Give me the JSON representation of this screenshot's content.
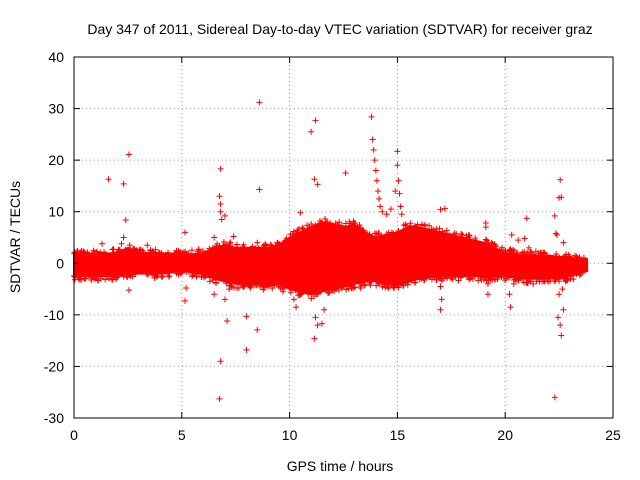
{
  "chart_data": {
    "type": "scatter",
    "title": "Day 347 of 2011, Sidereal Day-to-day VTEC variation (SDTVAR) for receiver graz",
    "xlabel": "GPS time / hours",
    "ylabel": "SDTVAR / TECUs",
    "xlim": [
      0,
      25
    ],
    "ylim": [
      -30,
      40
    ],
    "x_ticks": [
      "0",
      "5",
      "10",
      "15",
      "20",
      "25"
    ],
    "y_ticks": [
      "-30",
      "-20",
      "-10",
      "0",
      "10",
      "20",
      "30",
      "40"
    ],
    "grid": true,
    "marker": "+",
    "series_color": "#ff0000",
    "band": {
      "x": [
        0,
        1,
        2,
        2.5,
        3,
        4,
        5,
        6,
        6.5,
        7,
        7.5,
        8,
        8.5,
        9,
        9.5,
        10,
        10.5,
        11,
        11.5,
        12,
        12.5,
        13,
        13.5,
        14,
        14.5,
        15,
        15.5,
        16,
        17,
        18,
        19,
        20,
        21,
        22,
        23,
        23.8
      ],
      "upper": [
        2,
        1.8,
        2,
        3,
        2,
        2,
        1.5,
        2,
        3,
        3.5,
        3,
        3,
        3,
        3,
        3.5,
        5,
        6,
        7,
        8,
        7.5,
        7,
        7.5,
        6,
        5,
        5.5,
        6,
        7,
        7,
        6,
        5,
        4,
        2,
        1.5,
        1.5,
        1,
        0.8
      ],
      "lower": [
        -2.5,
        -2.5,
        -2.5,
        -2,
        -2,
        -2,
        -1.5,
        -2,
        -3,
        -3.5,
        -4,
        -4,
        -4,
        -4.5,
        -4,
        -5,
        -5.5,
        -6,
        -5.5,
        -5,
        -4.5,
        -4,
        -3.5,
        -3.5,
        -4,
        -4,
        -3.5,
        -3,
        -2.5,
        -2.5,
        -2.5,
        -2.5,
        -3,
        -3,
        -2.5,
        -1.5
      ]
    },
    "points": [
      [
        1.6,
        16.3
      ],
      [
        2.3,
        15.4
      ],
      [
        2.55,
        21.1
      ],
      [
        2.55,
        -5.2
      ],
      [
        2.4,
        8.4
      ],
      [
        2.3,
        5.0
      ],
      [
        2.2,
        3.8
      ],
      [
        1.3,
        3.8
      ],
      [
        3.4,
        3.5
      ],
      [
        5.15,
        6.0
      ],
      [
        5.2,
        -4.8
      ],
      [
        5.15,
        -7.3
      ],
      [
        6.3,
        -3.5
      ],
      [
        6.5,
        5.0
      ],
      [
        6.5,
        -6.0
      ],
      [
        6.8,
        18.3
      ],
      [
        6.75,
        13.0
      ],
      [
        6.8,
        11.5
      ],
      [
        6.8,
        10.0
      ],
      [
        6.85,
        8.5
      ],
      [
        7.0,
        9.2
      ],
      [
        6.8,
        -19.0
      ],
      [
        6.75,
        -26.3
      ],
      [
        7.0,
        -7.0
      ],
      [
        7.1,
        -11.2
      ],
      [
        7.2,
        -5.0
      ],
      [
        7.4,
        5.2
      ],
      [
        8.0,
        -10.3
      ],
      [
        8.0,
        -16.8
      ],
      [
        8.6,
        31.2
      ],
      [
        8.6,
        14.3
      ],
      [
        8.5,
        4.0
      ],
      [
        8.5,
        -12.9
      ],
      [
        9.5,
        -4.5
      ],
      [
        9.7,
        -5.5
      ],
      [
        10.2,
        -7.0
      ],
      [
        10.3,
        -8.5
      ],
      [
        10.5,
        9.8
      ],
      [
        11.0,
        25.5
      ],
      [
        11.2,
        27.7
      ],
      [
        11.15,
        16.3
      ],
      [
        11.3,
        15.3
      ],
      [
        11.2,
        -10.5
      ],
      [
        11.3,
        -12.0
      ],
      [
        11.15,
        -14.6
      ],
      [
        11.5,
        -11.7
      ],
      [
        11.6,
        -9.0
      ],
      [
        11.3,
        -6.0
      ],
      [
        12.6,
        17.5
      ],
      [
        13.8,
        28.4
      ],
      [
        13.85,
        24.0
      ],
      [
        13.9,
        22.0
      ],
      [
        13.95,
        20.0
      ],
      [
        14.0,
        18.0
      ],
      [
        14.05,
        16.0
      ],
      [
        14.1,
        14.0
      ],
      [
        14.15,
        12.5
      ],
      [
        14.2,
        11.0
      ],
      [
        14.3,
        10.0
      ],
      [
        14.5,
        9.5
      ],
      [
        14.7,
        10.5
      ],
      [
        14.9,
        14.0
      ],
      [
        15.0,
        21.7
      ],
      [
        15.0,
        19.0
      ],
      [
        15.05,
        16.0
      ],
      [
        15.1,
        13.5
      ],
      [
        15.15,
        11.0
      ],
      [
        15.2,
        9.5
      ],
      [
        13.4,
        -3.5
      ],
      [
        13.3,
        -4.8
      ],
      [
        17.0,
        10.4
      ],
      [
        17.2,
        10.6
      ],
      [
        17.0,
        -4.5
      ],
      [
        17.05,
        -7.0
      ],
      [
        17.0,
        -9.0
      ],
      [
        17.1,
        4.5
      ],
      [
        19.1,
        7.8
      ],
      [
        19.1,
        7.0
      ],
      [
        19.2,
        -4.0
      ],
      [
        19.2,
        -6.0
      ],
      [
        20.2,
        -6.0
      ],
      [
        20.25,
        -8.5
      ],
      [
        20.4,
        -4.0
      ],
      [
        20.3,
        5.5
      ],
      [
        20.6,
        4.5
      ],
      [
        20.9,
        4.8
      ],
      [
        21.0,
        8.7
      ],
      [
        21.1,
        3.0
      ],
      [
        21.3,
        -4.0
      ],
      [
        22.3,
        9.2
      ],
      [
        22.35,
        5.8
      ],
      [
        22.4,
        5.5
      ],
      [
        22.55,
        16.2
      ],
      [
        22.5,
        12.7
      ],
      [
        22.6,
        12.8
      ],
      [
        22.3,
        -26.0
      ],
      [
        22.55,
        -12.0
      ],
      [
        22.6,
        -14.0
      ],
      [
        22.45,
        -10.5
      ],
      [
        22.7,
        -9.0
      ],
      [
        22.5,
        -6.0
      ],
      [
        22.65,
        -5.0
      ],
      [
        22.7,
        4.0
      ],
      [
        22.8,
        -3.5
      ]
    ]
  }
}
